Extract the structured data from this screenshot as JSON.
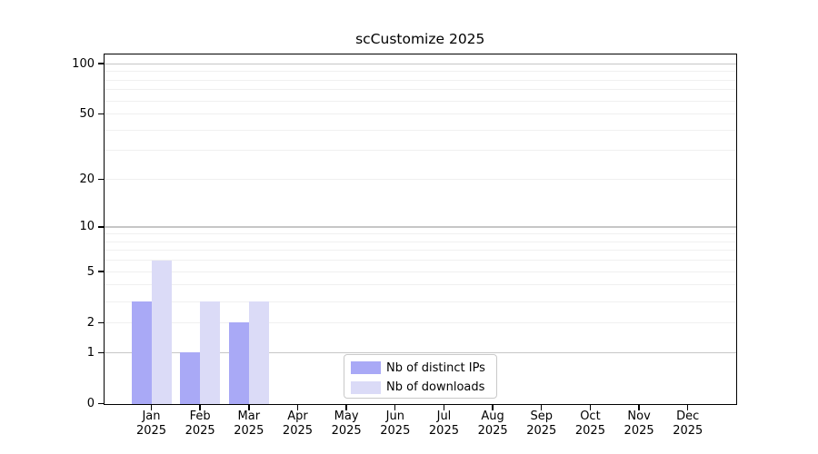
{
  "chart_data": {
    "type": "bar",
    "title": "scCustomize 2025",
    "categories": [
      "Jan",
      "Feb",
      "Mar",
      "Apr",
      "May",
      "Jun",
      "Jul",
      "Aug",
      "Sep",
      "Oct",
      "Nov",
      "Dec"
    ],
    "category_year": "2025",
    "series": [
      {
        "name": "Nb of distinct IPs",
        "color": "#a9a9f6",
        "values": [
          3,
          1,
          2,
          0,
          0,
          0,
          0,
          0,
          0,
          0,
          0,
          0
        ]
      },
      {
        "name": "Nb of downloads",
        "color": "#dbdbf7",
        "values": [
          6,
          3,
          3,
          0,
          0,
          0,
          0,
          0,
          0,
          0,
          0,
          0
        ]
      }
    ],
    "y_ticks": [
      0,
      1,
      2,
      5,
      10,
      20,
      50,
      100
    ],
    "major_gridlines": [
      1,
      10,
      100
    ],
    "minor_gridlines": [
      2,
      3,
      4,
      5,
      6,
      7,
      8,
      9,
      20,
      30,
      40,
      50,
      60,
      70,
      80,
      90
    ],
    "scale": "log10(value+1)",
    "ylim": [
      0,
      113.4
    ],
    "grid": true,
    "xlabel": "",
    "ylabel": "",
    "legend_position": "lower center",
    "colors": {
      "axis": "#000000",
      "major_grid": "#c6c6c6",
      "minor_grid": "#f0f0f0",
      "text": "#000000",
      "background": "#ffffff"
    }
  }
}
